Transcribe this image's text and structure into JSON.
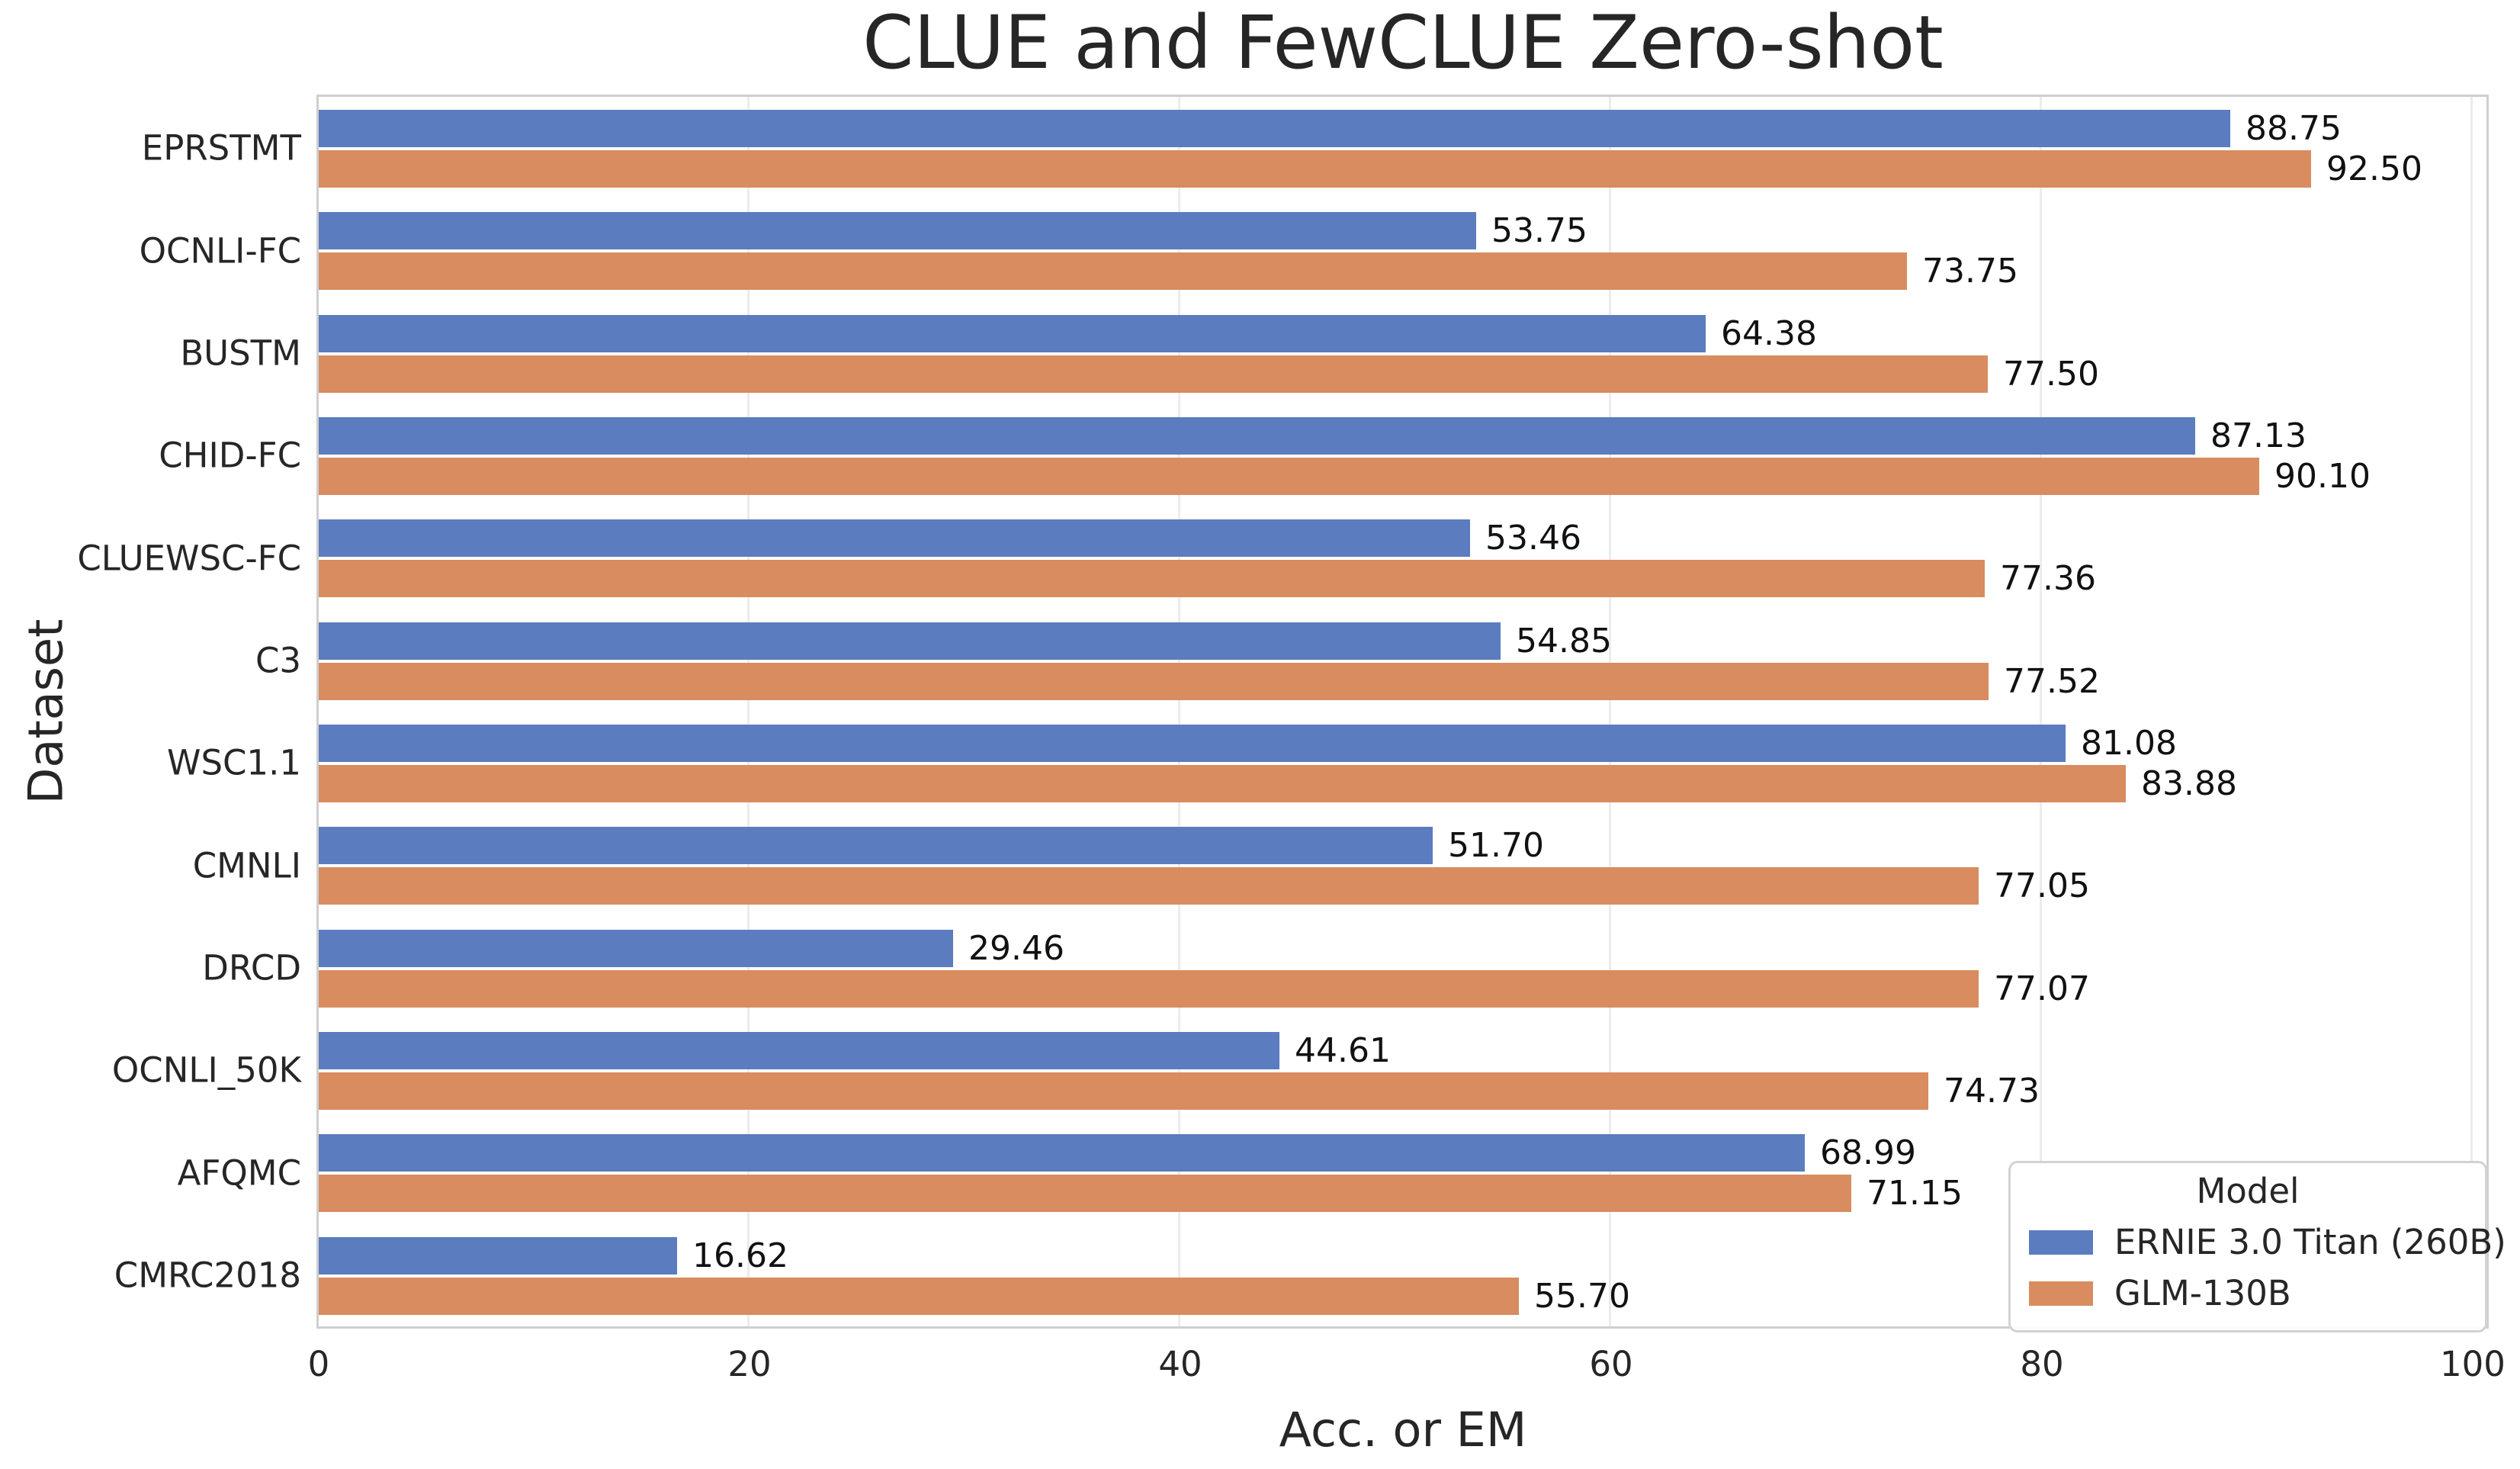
{
  "chart_data": {
    "type": "bar",
    "orientation": "horizontal",
    "title": "CLUE and FewCLUE Zero-shot",
    "xlabel": "Acc. or EM",
    "ylabel": "Dataset",
    "xlim": [
      0,
      100
    ],
    "x_ticks": [
      "0",
      "20",
      "40",
      "60",
      "80",
      "100"
    ],
    "grid": "vertical-light",
    "categories": [
      "EPRSTMT",
      "OCNLI-FC",
      "BUSTM",
      "CHID-FC",
      "CLUEWSC-FC",
      "C3",
      "WSC1.1",
      "CMNLI",
      "DRCD",
      "OCNLI_50K",
      "AFQMC",
      "CMRC2018"
    ],
    "series": [
      {
        "name": "ERNIE 3.0 Titan (260B)",
        "color": "#5b7cbe",
        "values": [
          88.75,
          53.75,
          64.38,
          87.13,
          53.46,
          54.85,
          81.08,
          51.7,
          29.46,
          44.61,
          68.99,
          16.62
        ],
        "labels": [
          "88.75",
          "53.75",
          "64.38",
          "87.13",
          "53.46",
          "54.85",
          "81.08",
          "51.70",
          "29.46",
          "44.61",
          "68.99",
          "16.62"
        ]
      },
      {
        "name": "GLM-130B",
        "color": "#d88c5f",
        "values": [
          92.5,
          73.75,
          77.5,
          90.1,
          77.36,
          77.52,
          83.88,
          77.05,
          77.07,
          74.73,
          71.15,
          55.7
        ],
        "labels": [
          "92.50",
          "73.75",
          "77.50",
          "90.10",
          "77.36",
          "77.52",
          "83.88",
          "77.05",
          "77.07",
          "74.73",
          "71.15",
          "55.70"
        ]
      }
    ],
    "legend": {
      "title": "Model",
      "position": "lower right"
    }
  }
}
